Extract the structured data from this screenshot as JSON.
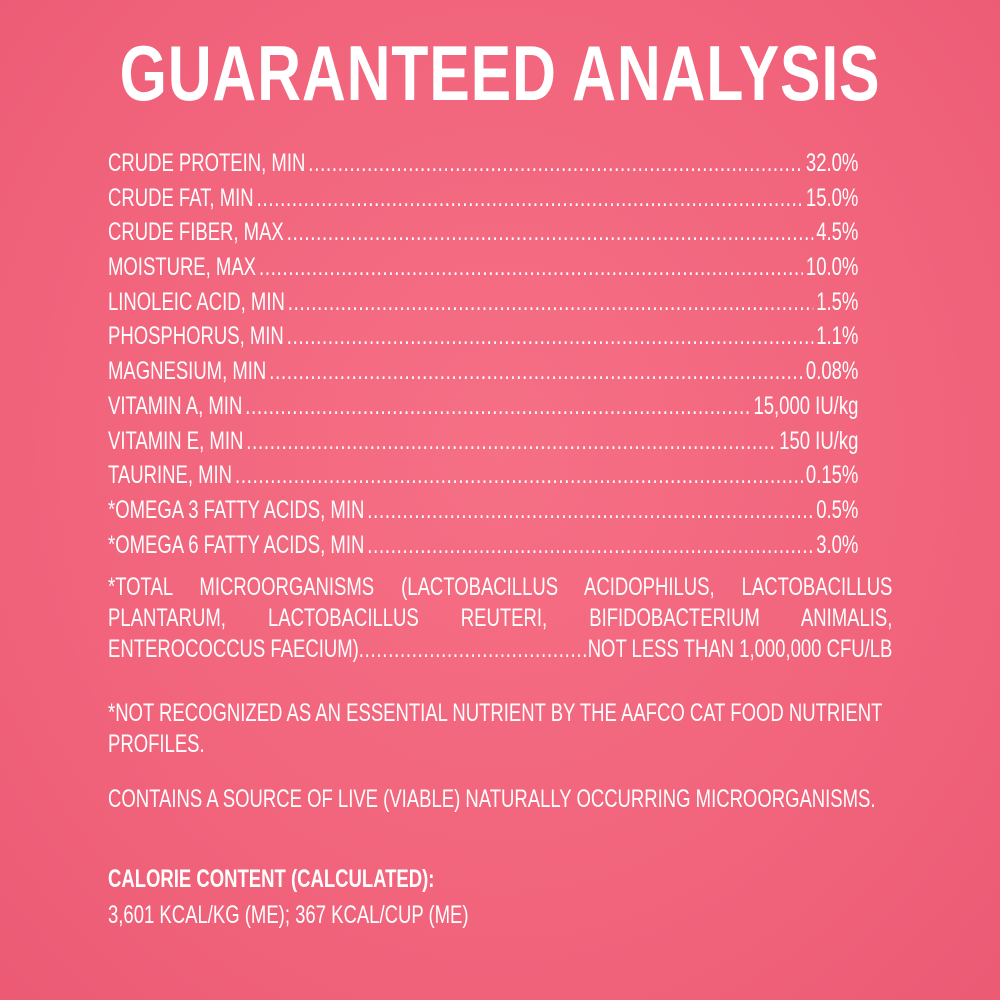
{
  "title": "GUARANTEED ANALYSIS",
  "rows": [
    {
      "label": "CRUDE PROTEIN, MIN",
      "value": "32.0%"
    },
    {
      "label": "CRUDE FAT, MIN",
      "value": "15.0%"
    },
    {
      "label": "CRUDE FIBER, MAX",
      "value": "4.5%"
    },
    {
      "label": "MOISTURE, MAX",
      "value": "10.0%"
    },
    {
      "label": "LINOLEIC ACID, MIN",
      "value": "1.5%"
    },
    {
      "label": "PHOSPHORUS, MIN",
      "value": "1.1%"
    },
    {
      "label": "MAGNESIUM, MIN",
      "value": "0.08%"
    },
    {
      "label": "VITAMIN A, MIN",
      "value": "15,000 IU/kg"
    },
    {
      "label": "VITAMIN E, MIN",
      "value": "150 IU/kg"
    },
    {
      "label": "TAURINE, MIN",
      "value": "0.15%"
    },
    {
      "label": "*OMEGA 3 FATTY ACIDS, MIN",
      "value": "0.5%"
    },
    {
      "label": "*OMEGA 6 FATTY ACIDS, MIN",
      "value": "3.0%"
    }
  ],
  "microorganisms": {
    "text": "*TOTAL MICROORGANISMS (LACTOBACILLUS ACIDOPHILUS, LACTOBACILLUS PLANTARUM, LACTOBACILLUS REUTERI, BIFIDOBACTERIUM ANIMALIS,",
    "last_label": "ENTEROCOCCUS FAECIUM)",
    "value": "NOT LESS THAN 1,000,000 CFU/LB"
  },
  "footnote": "*NOT RECOGNIZED AS AN ESSENTIAL NUTRIENT BY THE AAFCO CAT FOOD NUTRIENT PROFILES.",
  "live_source": "CONTAINS A SOURCE OF LIVE (VIABLE) NATURALLY OCCURRING MICROORGANISMS.",
  "calorie": {
    "heading": "CALORIE CONTENT (CALCULATED):",
    "value": "3,601 KCAL/KG (ME); 367 KCAL/CUP (ME)"
  },
  "colors": {
    "background": "#f1647c",
    "text": "#ffffff"
  }
}
